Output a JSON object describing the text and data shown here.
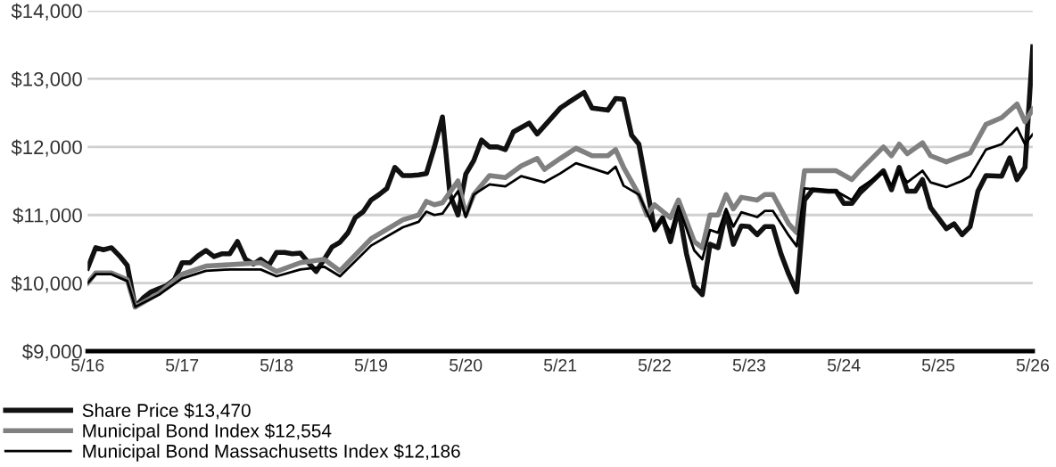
{
  "chart_data": {
    "type": "line",
    "xlim": [
      "2016-05",
      "2026-05"
    ],
    "xticks": [
      {
        "value": "2016-05",
        "label": "5/16"
      },
      {
        "value": "2017-05",
        "label": "5/17"
      },
      {
        "value": "2018-05",
        "label": "5/18"
      },
      {
        "value": "2019-05",
        "label": "5/19"
      },
      {
        "value": "2020-05",
        "label": "5/20"
      },
      {
        "value": "2021-05",
        "label": "5/21"
      },
      {
        "value": "2022-05",
        "label": "5/22"
      },
      {
        "value": "2023-05",
        "label": "5/23"
      },
      {
        "value": "2024-05",
        "label": "5/24"
      },
      {
        "value": "2025-05",
        "label": "5/25"
      },
      {
        "value": "2026-05",
        "label": "5/26"
      }
    ],
    "ylim": [
      9000,
      14000
    ],
    "yticks": [
      {
        "value": 9000,
        "label": "$9,000"
      },
      {
        "value": 10000,
        "label": "$10,000"
      },
      {
        "value": 11000,
        "label": "$11,000"
      },
      {
        "value": 12000,
        "label": "$12,000"
      },
      {
        "value": 13000,
        "label": "$13,000"
      },
      {
        "value": 14000,
        "label": "$14,000"
      }
    ],
    "grid": "y",
    "legend": "bottom left",
    "marker": "none",
    "line_style": "solid",
    "series": [
      {
        "name": "Share Price $13,470",
        "color": "#111111",
        "x": [
          "2016-05",
          "2016-06",
          "2016-07",
          "2016-08",
          "2016-09",
          "2016-10",
          "2016-11",
          "2016-12",
          "2017-01",
          "2017-02",
          "2017-03",
          "2017-04",
          "2017-05",
          "2017-06",
          "2017-07",
          "2017-08",
          "2017-09",
          "2017-10",
          "2017-11",
          "2017-12",
          "2018-01",
          "2018-02",
          "2018-03",
          "2018-04",
          "2018-05",
          "2018-06",
          "2018-07",
          "2018-08",
          "2018-09",
          "2018-10",
          "2018-11",
          "2018-12",
          "2019-01",
          "2019-02",
          "2019-03",
          "2019-04",
          "2019-05",
          "2019-06",
          "2019-07",
          "2019-08",
          "2019-09",
          "2019-10",
          "2019-11",
          "2019-12",
          "2020-01",
          "2020-02",
          "2020-03",
          "2020-04",
          "2020-05",
          "2020-06",
          "2020-07",
          "2020-08",
          "2020-09",
          "2020-10",
          "2020-11",
          "2021-01",
          "2021-02",
          "2021-05",
          "2021-06",
          "2021-08",
          "2021-09",
          "2021-11",
          "2021-12",
          "2022-01",
          "2022-02",
          "2022-03",
          "2022-05",
          "2022-06",
          "2022-07",
          "2022-08",
          "2022-09",
          "2022-10",
          "2022-11",
          "2022-12",
          "2023-01",
          "2023-02",
          "2023-03",
          "2023-04",
          "2023-05",
          "2023-06",
          "2023-07",
          "2023-08",
          "2023-09",
          "2023-10",
          "2023-11",
          "2023-12",
          "2024-01",
          "2024-03",
          "2024-04",
          "2024-05",
          "2024-06",
          "2024-07",
          "2024-10",
          "2024-11",
          "2024-12",
          "2025-01",
          "2025-02",
          "2025-03",
          "2025-04",
          "2025-06",
          "2025-07",
          "2025-08",
          "2025-09",
          "2025-10",
          "2025-11",
          "2026-01",
          "2026-02",
          "2026-03",
          "2026-04",
          "2026-05"
        ],
        "values": [
          10220,
          10520,
          10490,
          10520,
          10400,
          10260,
          9650,
          9780,
          9870,
          9920,
          9960,
          10050,
          10300,
          10300,
          10400,
          10480,
          10390,
          10430,
          10430,
          10610,
          10350,
          10280,
          10350,
          10260,
          10450,
          10450,
          10430,
          10440,
          10300,
          10170,
          10350,
          10530,
          10600,
          10740,
          10960,
          11050,
          11220,
          11300,
          11390,
          11700,
          11580,
          11580,
          11590,
          11610,
          12000,
          12440,
          11300,
          11000,
          11600,
          11800,
          12100,
          12000,
          12000,
          11960,
          12220,
          12350,
          12190,
          12570,
          12650,
          12800,
          12570,
          12540,
          12710,
          12700,
          12170,
          12040,
          10780,
          10960,
          10610,
          11090,
          10430,
          9960,
          9830,
          10570,
          10520,
          11040,
          10570,
          10840,
          10830,
          10710,
          10830,
          10830,
          10430,
          10130,
          9870,
          11220,
          11370,
          11350,
          11350,
          11170,
          11170,
          11320,
          11650,
          11370,
          11700,
          11350,
          11350,
          11520,
          11110,
          10800,
          10870,
          10710,
          10830,
          11350,
          11580,
          11570,
          11840,
          11520,
          11700,
          13470
        ]
      },
      {
        "name": "Municipal Bond Index $12,554",
        "color": "#808080",
        "x": [
          "2016-05",
          "2016-06",
          "2016-08",
          "2016-10",
          "2016-11",
          "2017-02",
          "2017-05",
          "2017-08",
          "2017-11",
          "2018-03",
          "2018-05",
          "2018-08",
          "2018-11",
          "2019-01",
          "2019-05",
          "2019-09",
          "2019-11",
          "2019-12",
          "2020-01",
          "2020-02",
          "2020-04",
          "2020-05",
          "2020-06",
          "2020-08",
          "2020-10",
          "2020-12",
          "2021-02",
          "2021-03",
          "2021-05",
          "2021-07",
          "2021-09",
          "2021-11",
          "2021-12",
          "2022-01",
          "2022-03",
          "2022-04",
          "2022-05",
          "2022-07",
          "2022-08",
          "2022-10",
          "2022-11",
          "2022-12",
          "2023-01",
          "2023-02",
          "2023-03",
          "2023-04",
          "2023-06",
          "2023-07",
          "2023-08",
          "2023-10",
          "2023-11",
          "2023-12",
          "2024-04",
          "2024-06",
          "2024-07",
          "2024-10",
          "2024-11",
          "2024-12",
          "2025-01",
          "2025-03",
          "2025-04",
          "2025-06",
          "2025-08",
          "2025-09",
          "2025-11",
          "2026-01",
          "2026-03",
          "2026-04",
          "2026-05"
        ],
        "values": [
          10000,
          10150,
          10150,
          10050,
          9650,
          9850,
          10130,
          10250,
          10270,
          10300,
          10170,
          10300,
          10350,
          10180,
          10650,
          10930,
          11000,
          11200,
          11150,
          11180,
          11500,
          11000,
          11300,
          11580,
          11550,
          11720,
          11830,
          11670,
          11830,
          11980,
          11870,
          11870,
          11960,
          11700,
          11300,
          11000,
          11150,
          10960,
          11220,
          10610,
          10520,
          11000,
          11000,
          11300,
          11090,
          11260,
          11220,
          11300,
          11300,
          10870,
          10740,
          11650,
          11650,
          11520,
          11650,
          12000,
          11870,
          12040,
          11900,
          12060,
          11870,
          11780,
          11870,
          11910,
          12330,
          12430,
          12630,
          12370,
          12554
        ]
      },
      {
        "name": "Municipal Bond Massachusetts Index $12,186",
        "color": "#000000",
        "x": [
          "2016-05",
          "2016-06",
          "2016-08",
          "2016-10",
          "2016-11",
          "2017-02",
          "2017-05",
          "2017-08",
          "2017-11",
          "2018-03",
          "2018-05",
          "2018-08",
          "2018-11",
          "2019-01",
          "2019-05",
          "2019-09",
          "2019-11",
          "2019-12",
          "2020-01",
          "2020-02",
          "2020-04",
          "2020-05",
          "2020-06",
          "2020-08",
          "2020-10",
          "2020-12",
          "2021-03",
          "2021-05",
          "2021-07",
          "2021-11",
          "2021-12",
          "2022-01",
          "2022-03",
          "2022-05",
          "2022-06",
          "2022-07",
          "2022-08",
          "2022-10",
          "2022-11",
          "2022-12",
          "2023-01",
          "2023-02",
          "2023-03",
          "2023-04",
          "2023-06",
          "2023-07",
          "2023-08",
          "2023-10",
          "2023-11",
          "2023-12",
          "2024-04",
          "2024-06",
          "2024-07",
          "2024-10",
          "2024-11",
          "2024-12",
          "2025-01",
          "2025-03",
          "2025-04",
          "2025-06",
          "2025-08",
          "2025-09",
          "2025-11",
          "2026-01",
          "2026-03",
          "2026-04",
          "2026-05"
        ],
        "values": [
          10000,
          10130,
          10130,
          10030,
          9650,
          9830,
          10070,
          10180,
          10200,
          10200,
          10100,
          10200,
          10240,
          10100,
          10550,
          10820,
          10900,
          11050,
          11000,
          11020,
          11350,
          10970,
          11300,
          11450,
          11420,
          11570,
          11480,
          11610,
          11760,
          11610,
          11710,
          11430,
          11300,
          10780,
          10960,
          10740,
          11130,
          10480,
          10350,
          10780,
          10740,
          11090,
          10830,
          11040,
          10970,
          11060,
          11060,
          10700,
          10540,
          11390,
          11350,
          11220,
          11390,
          11630,
          11430,
          11650,
          11480,
          11650,
          11480,
          11410,
          11500,
          11570,
          11960,
          12040,
          12280,
          12040,
          12186
        ]
      }
    ]
  }
}
